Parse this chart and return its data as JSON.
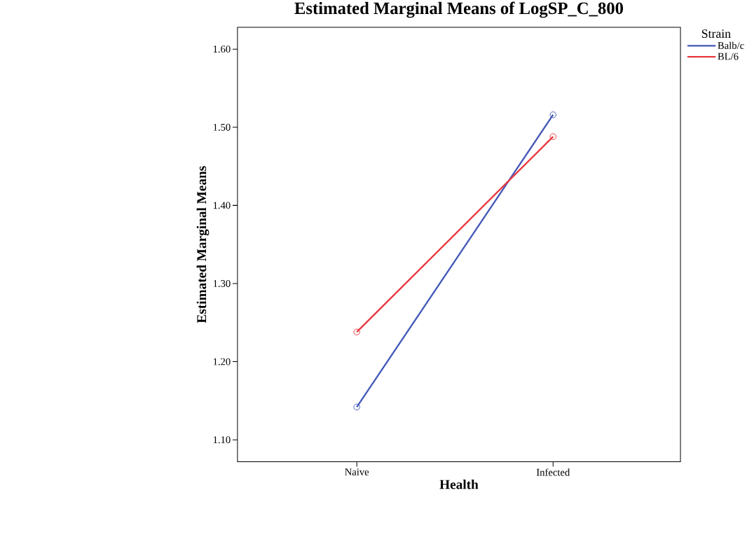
{
  "chart_data": {
    "type": "line",
    "title": "Estimated Marginal Means of LogSP_C_800",
    "xlabel": "Health",
    "ylabel": "Estimated Marginal Means",
    "legend_title": "Strain",
    "categories": [
      "Naive",
      "Infected"
    ],
    "series": [
      {
        "name": "Balb/c",
        "color": "#4257b8",
        "values": [
          1.142,
          1.516
        ]
      },
      {
        "name": "BL/6",
        "color": "#e8373f",
        "values": [
          1.238,
          1.488
        ]
      }
    ],
    "ylim": [
      1.072,
      1.628
    ],
    "yticks": [
      {
        "value": 1.1,
        "label": "1.10"
      },
      {
        "value": 1.2,
        "label": "1.20"
      },
      {
        "value": 1.3,
        "label": "1.30"
      },
      {
        "value": 1.4,
        "label": "1.40"
      },
      {
        "value": 1.5,
        "label": "1.50"
      },
      {
        "value": 1.6,
        "label": "1.60"
      }
    ],
    "grid": false,
    "legend": "right",
    "marker": "circle",
    "line_style": "solid"
  }
}
